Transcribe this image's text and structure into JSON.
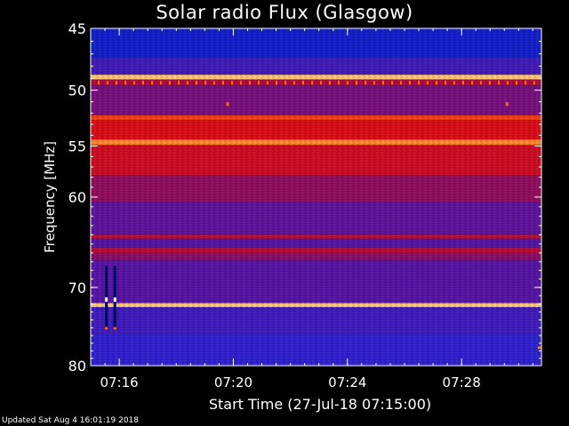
{
  "chart_data": {
    "type": "heatmap",
    "title": "Solar radio Flux (Glasgow)",
    "xlabel": "Start Time (27-Jul-18 07:15:00)",
    "ylabel": "Frequency [MHz]",
    "x_range_minutes": [
      0,
      15.8
    ],
    "x_ticks": [
      {
        "label": "07:16",
        "minute": 1
      },
      {
        "label": "07:20",
        "minute": 5
      },
      {
        "label": "07:24",
        "minute": 9
      },
      {
        "label": "07:28",
        "minute": 13
      }
    ],
    "ylim": [
      45,
      80
    ],
    "y_ticks": [
      45,
      50,
      55,
      60,
      70,
      80
    ],
    "y_scale": "log",
    "intensity_bands": [
      {
        "f0": 45.0,
        "f1": 47.3,
        "level": 0.12
      },
      {
        "f0": 47.3,
        "f1": 48.7,
        "level": 0.28
      },
      {
        "f0": 48.7,
        "f1": 49.1,
        "level": 0.95
      },
      {
        "f0": 49.1,
        "f1": 49.6,
        "level": 0.55
      },
      {
        "f0": 49.6,
        "f1": 52.2,
        "level": 0.42
      },
      {
        "f0": 52.2,
        "f1": 52.6,
        "level": 0.78
      },
      {
        "f0": 52.6,
        "f1": 54.4,
        "level": 0.68
      },
      {
        "f0": 54.4,
        "f1": 54.9,
        "level": 0.88
      },
      {
        "f0": 54.9,
        "f1": 57.8,
        "level": 0.64
      },
      {
        "f0": 57.8,
        "f1": 60.5,
        "level": 0.48
      },
      {
        "f0": 60.5,
        "f1": 64.0,
        "level": 0.36
      },
      {
        "f0": 64.0,
        "f1": 64.4,
        "level": 0.62
      },
      {
        "f0": 64.4,
        "f1": 65.4,
        "level": 0.34
      },
      {
        "f0": 65.4,
        "f1": 66.0,
        "level": 0.58
      },
      {
        "f0": 66.0,
        "f1": 66.8,
        "level": 0.46
      },
      {
        "f0": 66.8,
        "f1": 71.9,
        "level": 0.34
      },
      {
        "f0": 71.9,
        "f1": 72.4,
        "level": 0.95
      },
      {
        "f0": 72.4,
        "f1": 75.8,
        "level": 0.27
      },
      {
        "f0": 75.8,
        "f1": 80.0,
        "level": 0.22
      }
    ]
  },
  "footer": "Updated Sat Aug  4 16:01:19 2018"
}
